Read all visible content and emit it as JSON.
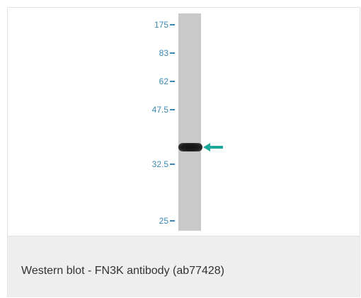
{
  "figure": {
    "markers": [
      {
        "label": "175"
      },
      {
        "label": "83"
      },
      {
        "label": "62"
      },
      {
        "label": "47.5"
      },
      {
        "label": "32.5"
      },
      {
        "label": "25"
      }
    ],
    "arrow_color": "#1aa89a",
    "marker_color": "#3a89b3"
  },
  "caption": {
    "text": "Western blot - FN3K antibody (ab77428)"
  }
}
